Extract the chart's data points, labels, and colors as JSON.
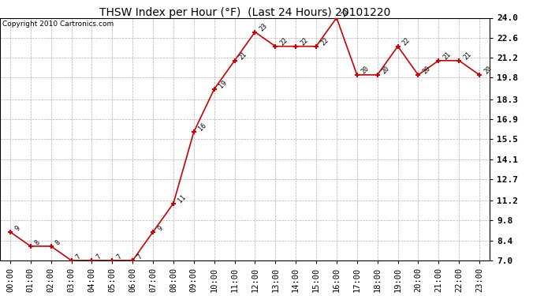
{
  "title": "THSW Index per Hour (°F)  (Last 24 Hours) 20101220",
  "copyright": "Copyright 2010 Cartronics.com",
  "x_labels": [
    "00:00",
    "01:00",
    "02:00",
    "03:00",
    "04:00",
    "05:00",
    "06:00",
    "07:00",
    "08:00",
    "09:00",
    "10:00",
    "11:00",
    "12:00",
    "13:00",
    "14:00",
    "15:00",
    "16:00",
    "17:00",
    "18:00",
    "19:00",
    "20:00",
    "21:00",
    "22:00",
    "23:00"
  ],
  "y_values": [
    9,
    8,
    8,
    7,
    7,
    7,
    7,
    9,
    11,
    16,
    19,
    21,
    23,
    22,
    22,
    22,
    24,
    20,
    20,
    22,
    20,
    21,
    21,
    20
  ],
  "point_labels": [
    "9",
    "8",
    "8",
    "7",
    "7",
    "7",
    "7",
    "9",
    "11",
    "16",
    "19",
    "21",
    "23",
    "22",
    "22",
    "22",
    "24",
    "20",
    "20",
    "22",
    "20",
    "21",
    "21",
    "20"
  ],
  "ylim": [
    7.0,
    24.0
  ],
  "y_ticks": [
    7.0,
    8.4,
    9.8,
    11.2,
    12.7,
    14.1,
    15.5,
    16.9,
    18.3,
    19.8,
    21.2,
    22.6,
    24.0
  ],
  "line_color": "#cc0000",
  "marker_color": "#cc0000",
  "bg_color": "#ffffff",
  "plot_bg_color": "#ffffff",
  "grid_color": "#b0b0b0",
  "title_fontsize": 10,
  "copyright_fontsize": 6.5,
  "label_fontsize": 6,
  "tick_fontsize": 7.5,
  "ytick_fontsize": 8
}
